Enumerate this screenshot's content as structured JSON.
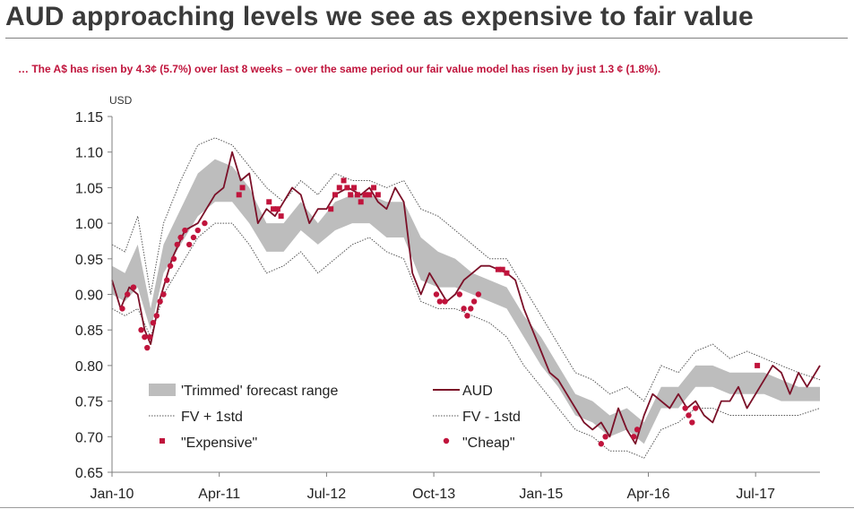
{
  "header": {
    "title": "AUD approaching levels we see as expensive to fair value",
    "subtitle": "… The A$ has risen by 4.3¢ (5.7%) over last 8 weeks – over the same period our fair value model has risen by just 1.3 ¢ (1.8%)."
  },
  "colors": {
    "aud": "#7b1028",
    "band": "#bdbdbd",
    "std": "#555555",
    "marker": "#c0143c",
    "subtitle": "#c0143c"
  },
  "chart_data": {
    "type": "line",
    "title": "",
    "ylabel": "USD",
    "xlabel": "",
    "ylim": [
      0.65,
      1.15
    ],
    "xlim": [
      2010.0,
      2018.25
    ],
    "yticks": [
      "0.65",
      "0.70",
      "0.75",
      "0.80",
      "0.85",
      "0.90",
      "0.95",
      "1.00",
      "1.05",
      "1.10",
      "1.15"
    ],
    "xticks": [
      {
        "label": "Jan-10",
        "x": 2010.0
      },
      {
        "label": "Apr-11",
        "x": 2011.25
      },
      {
        "label": "Jul-12",
        "x": 2012.5
      },
      {
        "label": "Oct-13",
        "x": 2013.75
      },
      {
        "label": "Jan-15",
        "x": 2015.0
      },
      {
        "label": "Apr-16",
        "x": 2016.25
      },
      {
        "label": "Jul-17",
        "x": 2017.5
      }
    ],
    "legend": [
      {
        "key": "band",
        "label": "'Trimmed' forecast range"
      },
      {
        "key": "aud",
        "label": "AUD"
      },
      {
        "key": "fv_up",
        "label": "FV + 1std"
      },
      {
        "key": "fv_dn",
        "label": "FV - 1std"
      },
      {
        "key": "expensive",
        "label": "\"Expensive\""
      },
      {
        "key": "cheap",
        "label": "\"Cheap\""
      }
    ],
    "series": [
      {
        "name": "AUD",
        "x": [
          2010.0,
          2010.1,
          2010.2,
          2010.3,
          2010.38,
          2010.45,
          2010.55,
          2010.7,
          2010.85,
          2011.0,
          2011.1,
          2011.2,
          2011.3,
          2011.4,
          2011.5,
          2011.6,
          2011.7,
          2011.8,
          2011.9,
          2012.0,
          2012.1,
          2012.2,
          2012.3,
          2012.4,
          2012.5,
          2012.6,
          2012.75,
          2012.9,
          2013.0,
          2013.1,
          2013.2,
          2013.3,
          2013.4,
          2013.5,
          2013.6,
          2013.7,
          2013.8,
          2013.9,
          2014.0,
          2014.1,
          2014.2,
          2014.3,
          2014.4,
          2014.5,
          2014.6,
          2014.7,
          2014.8,
          2014.9,
          2015.0,
          2015.1,
          2015.2,
          2015.3,
          2015.4,
          2015.5,
          2015.6,
          2015.7,
          2015.8,
          2015.9,
          2016.0,
          2016.1,
          2016.2,
          2016.3,
          2016.4,
          2016.5,
          2016.6,
          2016.7,
          2016.8,
          2016.9,
          2017.0,
          2017.1,
          2017.2,
          2017.3,
          2017.4,
          2017.5,
          2017.6,
          2017.7,
          2017.8,
          2017.9,
          2018.0,
          2018.1,
          2018.25
        ],
        "values": [
          0.92,
          0.88,
          0.91,
          0.9,
          0.85,
          0.83,
          0.89,
          0.95,
          0.99,
          1.0,
          1.02,
          1.04,
          1.05,
          1.1,
          1.06,
          1.07,
          1.0,
          1.02,
          1.01,
          1.03,
          1.05,
          1.04,
          1.0,
          1.02,
          1.02,
          1.04,
          1.05,
          1.04,
          1.05,
          1.03,
          1.02,
          1.05,
          1.03,
          0.93,
          0.9,
          0.93,
          0.91,
          0.89,
          0.9,
          0.92,
          0.93,
          0.94,
          0.94,
          0.935,
          0.93,
          0.92,
          0.88,
          0.85,
          0.82,
          0.79,
          0.78,
          0.76,
          0.74,
          0.72,
          0.71,
          0.72,
          0.7,
          0.74,
          0.71,
          0.69,
          0.73,
          0.76,
          0.75,
          0.74,
          0.76,
          0.74,
          0.75,
          0.73,
          0.72,
          0.75,
          0.75,
          0.77,
          0.74,
          0.76,
          0.78,
          0.8,
          0.79,
          0.76,
          0.79,
          0.77,
          0.8
        ]
      },
      {
        "name": "FV + 1std",
        "x": [
          2010.0,
          2010.15,
          2010.3,
          2010.45,
          2010.6,
          2010.8,
          2011.0,
          2011.2,
          2011.4,
          2011.6,
          2011.8,
          2012.0,
          2012.2,
          2012.4,
          2012.6,
          2012.8,
          2013.0,
          2013.2,
          2013.4,
          2013.6,
          2013.8,
          2014.0,
          2014.2,
          2014.4,
          2014.6,
          2014.8,
          2015.0,
          2015.2,
          2015.4,
          2015.6,
          2015.8,
          2016.0,
          2016.2,
          2016.4,
          2016.6,
          2016.8,
          2017.0,
          2017.2,
          2017.4,
          2017.6,
          2017.8,
          2018.0,
          2018.25
        ],
        "values": [
          0.97,
          0.96,
          1.01,
          0.9,
          1.0,
          1.06,
          1.11,
          1.12,
          1.11,
          1.08,
          1.05,
          1.03,
          1.06,
          1.04,
          1.07,
          1.06,
          1.06,
          1.05,
          1.06,
          1.02,
          1.01,
          0.99,
          0.97,
          0.95,
          0.95,
          0.91,
          0.87,
          0.83,
          0.79,
          0.78,
          0.76,
          0.77,
          0.75,
          0.8,
          0.79,
          0.82,
          0.83,
          0.81,
          0.82,
          0.81,
          0.8,
          0.79,
          0.78
        ]
      },
      {
        "name": "FV - 1std",
        "x": [
          2010.0,
          2010.15,
          2010.3,
          2010.45,
          2010.6,
          2010.8,
          2011.0,
          2011.2,
          2011.4,
          2011.6,
          2011.8,
          2012.0,
          2012.2,
          2012.4,
          2012.6,
          2012.8,
          2013.0,
          2013.2,
          2013.4,
          2013.6,
          2013.8,
          2014.0,
          2014.2,
          2014.4,
          2014.6,
          2014.8,
          2015.0,
          2015.2,
          2015.4,
          2015.6,
          2015.8,
          2016.0,
          2016.2,
          2016.4,
          2016.6,
          2016.8,
          2017.0,
          2017.2,
          2017.4,
          2017.6,
          2017.8,
          2018.0,
          2018.25
        ],
        "values": [
          0.88,
          0.87,
          0.88,
          0.84,
          0.9,
          0.94,
          0.98,
          1.0,
          1.0,
          0.97,
          0.93,
          0.94,
          0.96,
          0.93,
          0.95,
          0.97,
          0.98,
          0.96,
          0.95,
          0.89,
          0.88,
          0.88,
          0.87,
          0.86,
          0.84,
          0.8,
          0.77,
          0.74,
          0.71,
          0.7,
          0.68,
          0.68,
          0.67,
          0.71,
          0.72,
          0.74,
          0.74,
          0.73,
          0.73,
          0.73,
          0.73,
          0.73,
          0.74
        ]
      },
      {
        "name": "'Trimmed' forecast range",
        "x": [
          2010.0,
          2010.15,
          2010.3,
          2010.45,
          2010.6,
          2010.8,
          2011.0,
          2011.2,
          2011.4,
          2011.6,
          2011.8,
          2012.0,
          2012.2,
          2012.4,
          2012.6,
          2012.8,
          2013.0,
          2013.2,
          2013.4,
          2013.6,
          2013.8,
          2014.0,
          2014.2,
          2014.4,
          2014.6,
          2014.8,
          2015.0,
          2015.2,
          2015.4,
          2015.6,
          2015.8,
          2016.0,
          2016.2,
          2016.4,
          2016.6,
          2016.8,
          2017.0,
          2017.2,
          2017.4,
          2017.6,
          2017.8,
          2018.0,
          2018.25
        ],
        "upper": [
          0.94,
          0.93,
          0.97,
          0.88,
          0.97,
          1.02,
          1.07,
          1.09,
          1.08,
          1.05,
          1.0,
          1.0,
          1.03,
          1.0,
          1.03,
          1.04,
          1.04,
          1.03,
          1.03,
          0.98,
          0.96,
          0.95,
          0.93,
          0.92,
          0.91,
          0.87,
          0.84,
          0.8,
          0.76,
          0.75,
          0.73,
          0.74,
          0.72,
          0.77,
          0.77,
          0.8,
          0.8,
          0.79,
          0.79,
          0.79,
          0.78,
          0.77,
          0.77
        ],
        "lower": [
          0.9,
          0.89,
          0.91,
          0.85,
          0.93,
          0.97,
          1.01,
          1.03,
          1.03,
          1.0,
          0.96,
          0.96,
          0.99,
          0.97,
          0.99,
          1.0,
          1.0,
          0.98,
          0.98,
          0.92,
          0.91,
          0.91,
          0.9,
          0.89,
          0.88,
          0.84,
          0.8,
          0.77,
          0.73,
          0.72,
          0.7,
          0.71,
          0.69,
          0.74,
          0.74,
          0.77,
          0.77,
          0.76,
          0.76,
          0.76,
          0.75,
          0.75,
          0.75
        ]
      }
    ],
    "expensive": [
      {
        "x": 2011.48,
        "y": 1.04
      },
      {
        "x": 2011.52,
        "y": 1.05
      },
      {
        "x": 2011.83,
        "y": 1.03
      },
      {
        "x": 2011.88,
        "y": 1.02
      },
      {
        "x": 2011.93,
        "y": 1.02
      },
      {
        "x": 2011.97,
        "y": 1.01
      },
      {
        "x": 2012.55,
        "y": 1.02
      },
      {
        "x": 2012.6,
        "y": 1.04
      },
      {
        "x": 2012.65,
        "y": 1.05
      },
      {
        "x": 2012.7,
        "y": 1.06
      },
      {
        "x": 2012.74,
        "y": 1.05
      },
      {
        "x": 2012.78,
        "y": 1.04
      },
      {
        "x": 2012.82,
        "y": 1.05
      },
      {
        "x": 2012.86,
        "y": 1.04
      },
      {
        "x": 2012.9,
        "y": 1.03
      },
      {
        "x": 2012.95,
        "y": 1.04
      },
      {
        "x": 2013.0,
        "y": 1.04
      },
      {
        "x": 2013.05,
        "y": 1.05
      },
      {
        "x": 2013.1,
        "y": 1.04
      },
      {
        "x": 2014.5,
        "y": 0.935
      },
      {
        "x": 2014.55,
        "y": 0.935
      },
      {
        "x": 2014.6,
        "y": 0.93
      },
      {
        "x": 2017.52,
        "y": 0.8
      }
    ],
    "cheap": [
      {
        "x": 2010.12,
        "y": 0.88
      },
      {
        "x": 2010.18,
        "y": 0.9
      },
      {
        "x": 2010.25,
        "y": 0.91
      },
      {
        "x": 2010.34,
        "y": 0.85
      },
      {
        "x": 2010.38,
        "y": 0.84
      },
      {
        "x": 2010.41,
        "y": 0.825
      },
      {
        "x": 2010.44,
        "y": 0.84
      },
      {
        "x": 2010.48,
        "y": 0.86
      },
      {
        "x": 2010.52,
        "y": 0.87
      },
      {
        "x": 2010.56,
        "y": 0.89
      },
      {
        "x": 2010.6,
        "y": 0.9
      },
      {
        "x": 2010.64,
        "y": 0.92
      },
      {
        "x": 2010.68,
        "y": 0.94
      },
      {
        "x": 2010.72,
        "y": 0.95
      },
      {
        "x": 2010.76,
        "y": 0.97
      },
      {
        "x": 2010.8,
        "y": 0.98
      },
      {
        "x": 2010.85,
        "y": 0.99
      },
      {
        "x": 2010.9,
        "y": 0.97
      },
      {
        "x": 2010.95,
        "y": 0.98
      },
      {
        "x": 2011.0,
        "y": 0.99
      },
      {
        "x": 2011.08,
        "y": 1.0
      },
      {
        "x": 2013.78,
        "y": 0.9
      },
      {
        "x": 2013.82,
        "y": 0.89
      },
      {
        "x": 2013.88,
        "y": 0.89
      },
      {
        "x": 2014.05,
        "y": 0.9
      },
      {
        "x": 2014.1,
        "y": 0.88
      },
      {
        "x": 2014.14,
        "y": 0.87
      },
      {
        "x": 2014.18,
        "y": 0.88
      },
      {
        "x": 2014.22,
        "y": 0.89
      },
      {
        "x": 2014.27,
        "y": 0.9
      },
      {
        "x": 2015.7,
        "y": 0.69
      },
      {
        "x": 2015.75,
        "y": 0.7
      },
      {
        "x": 2016.08,
        "y": 0.7
      },
      {
        "x": 2016.12,
        "y": 0.71
      },
      {
        "x": 2016.68,
        "y": 0.74
      },
      {
        "x": 2016.72,
        "y": 0.73
      },
      {
        "x": 2016.76,
        "y": 0.72
      },
      {
        "x": 2016.8,
        "y": 0.74
      }
    ]
  }
}
